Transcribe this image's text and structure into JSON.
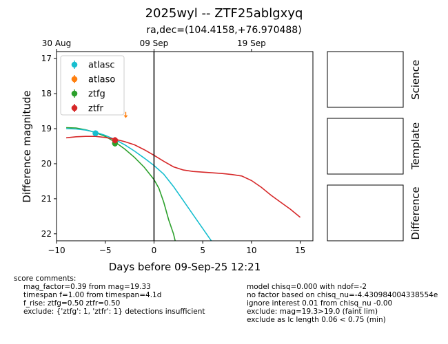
{
  "figure": {
    "title": "2025wyl -- ZTF25ablgxyq",
    "subtitle": "ra,dec=(104.4158,+76.970488)"
  },
  "chart_data": {
    "type": "line",
    "xlabel": "Days before 09-Sep-25 12:21",
    "ylabel": "Difference magnitude",
    "xlim": [
      -10,
      16.3
    ],
    "ylim": [
      22.2,
      16.8
    ],
    "y_inverted": true,
    "x_ticks": [
      -10,
      -5,
      0,
      5,
      10,
      15
    ],
    "y_ticks": [
      17,
      18,
      19,
      20,
      21,
      22
    ],
    "top_axis_ticks": [
      {
        "x": -10,
        "label": "30 Aug"
      },
      {
        "x": 0,
        "label": "09 Sep"
      },
      {
        "x": 10,
        "label": "19 Sep"
      }
    ],
    "vline_x": 0,
    "legend_position": "upper-left",
    "series": [
      {
        "name": "atlasc",
        "color": "#17becf",
        "points": [
          {
            "x": -6.0,
            "y": 19.13,
            "err": 0.08
          }
        ],
        "model": {
          "x": [
            -9,
            -8,
            -7,
            -6,
            -5,
            -4,
            -3,
            -2,
            -1,
            0,
            1,
            2,
            3,
            4,
            5,
            6,
            6.3
          ],
          "y": [
            19.0,
            19.01,
            19.04,
            19.1,
            19.19,
            19.31,
            19.46,
            19.64,
            19.84,
            20.05,
            20.3,
            20.65,
            21.05,
            21.45,
            21.85,
            22.25,
            22.35
          ]
        }
      },
      {
        "name": "atlaso",
        "color": "#ff7f0e",
        "points": [],
        "upper_limits": [
          {
            "x": -2.9,
            "y": 18.6
          }
        ]
      },
      {
        "name": "ztfg",
        "color": "#2ca02c",
        "points": [
          {
            "x": -4.0,
            "y": 19.42,
            "err": 0.09
          }
        ],
        "model": {
          "x": [
            -9,
            -8,
            -7,
            -6,
            -5,
            -4,
            -3,
            -2,
            -1,
            0,
            0.5,
            1,
            1.5,
            2,
            2.3
          ],
          "y": [
            18.97,
            18.98,
            19.03,
            19.11,
            19.22,
            19.38,
            19.58,
            19.82,
            20.1,
            20.45,
            20.7,
            21.1,
            21.6,
            22.0,
            22.35
          ]
        }
      },
      {
        "name": "ztfr",
        "color": "#d62728",
        "points": [
          {
            "x": -4.0,
            "y": 19.33,
            "err": 0.09
          }
        ],
        "model": {
          "x": [
            -9,
            -8,
            -7,
            -6,
            -5,
            -4,
            -3,
            -2,
            -1,
            0,
            1,
            2,
            3,
            4,
            5,
            6,
            7,
            8,
            9,
            10,
            11,
            12,
            13,
            14,
            15
          ],
          "y": [
            19.26,
            19.23,
            19.22,
            19.22,
            19.25,
            19.3,
            19.37,
            19.46,
            19.6,
            19.76,
            19.93,
            20.09,
            20.18,
            20.22,
            20.24,
            20.26,
            20.28,
            20.31,
            20.35,
            20.48,
            20.67,
            20.9,
            21.1,
            21.3,
            21.53
          ]
        }
      }
    ]
  },
  "side_panels": {
    "science_label": "Science",
    "template_label": "Template",
    "difference_label": "Difference"
  },
  "comments_left": [
    "score comments:",
    "mag_factor=0.39 from mag=19.33",
    "timespan f=1.00 from timespan=4.1d",
    "f_rise: ztfg=0.50 ztfr=0.50",
    "exclude: {'ztfg': 1, 'ztfr': 1} detections insufficient"
  ],
  "comments_right": [
    "model chisq=0.000 with ndof=-2",
    "no factor based on chisq_nu=-4.430984004338554e",
    "ignore interest 0.01 from chisq_nu -0.00",
    "exclude: mag=19.3>19.0 (faint lim)",
    "exclude as lc length 0.06 < 0.75 (min)"
  ]
}
